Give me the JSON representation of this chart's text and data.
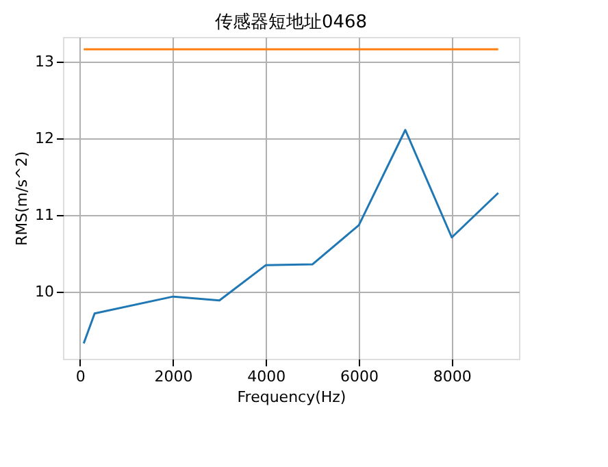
{
  "chart_data": {
    "type": "line",
    "title": "传感器短地址0468",
    "xlabel": "Frequency(Hz)",
    "ylabel": "RMS(m/s^2)",
    "series": [
      {
        "color": "#1f77b4",
        "x": [
          80,
          315,
          2000,
          3000,
          4000,
          5000,
          6000,
          7000,
          8000,
          9000
        ],
        "values": [
          9.33,
          9.72,
          9.94,
          9.89,
          10.35,
          10.36,
          10.87,
          12.11,
          10.71,
          11.29
        ]
      },
      {
        "color": "#ff7f0e",
        "x": [
          80,
          9000
        ],
        "values": [
          13.16,
          13.16
        ]
      }
    ],
    "xlim": [
      -366,
      9446
    ],
    "xticks": [
      0,
      2000,
      4000,
      6000,
      8000
    ],
    "ylim": [
      9.13,
      13.32
    ],
    "yticks": [
      10,
      11,
      12,
      13
    ],
    "grid": true
  }
}
